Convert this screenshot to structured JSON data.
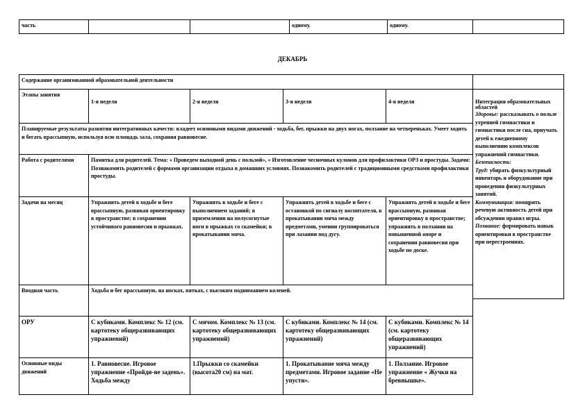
{
  "top_row": [
    "часть",
    "",
    "",
    "одному.",
    "одному.",
    ""
  ],
  "month_title": "ДЕКАБРЬ",
  "header": "Содержание организованной образовательной деятельности",
  "stages_label": "Этапы занятия",
  "weeks": [
    "1-я неделя",
    "2-я неделя",
    "3-я неделя",
    "4-я неделя"
  ],
  "planned_results": "Планируемые результаты развития интегративных качеств: владеет основными видами движений - ходьба, бег, прыжки на двух ногах, ползание на четвереньках. Умеет ходить и бегать врассыпную, используя всю площадь зала, сохраняя равновесие.",
  "parents": {
    "label": "Работа с родителями",
    "text": "Памятка для родителей. Тема: « Проведем выходной день с пользой», « Изготовление чесночных кулонов для профилактики ОРЗ и простуды. Задачи: Познакомить родителей с формами организации отдыха в домашних условиях. Познакомить родителей с традиционными средствами профилактики простуды."
  },
  "tasks": {
    "label": "Задачи на месяц",
    "items": [
      "Упражнять детей в ходьбе и беге врассыпную, развивая ориентировку в пространстве; в сохранении устойчивого равновесия и прыжках.",
      "Упражнять в ходьбе и беге с выполнением заданий; в приземлении на полусогнутые ноги в прыжках со скамейки; в прокатывании мяча.",
      "Упражнять детей в ходьбе и беге с остановкой по сигналу воспитателя, в прокатывании мяча между предметами, умении группироваться при лазании под дугу.",
      "Упражнять детей в ходьбе и беге врассыпную, развивая ориентировку в пространстве; упражнять в ползании на повышенной опоре и сохранении равновесия при ходьбе по доске."
    ]
  },
  "intro": {
    "label": "Вводная часть",
    "text": "Ходьба и бег врассыпную, на носках, пятках, с высоким подниманием коленей."
  },
  "oru": {
    "label": "ОРУ",
    "items": [
      "С кубиками. Комплекс № 12 (см. картотеку общеразвивающих упражнений)",
      "С мячом. Комплекс № 13 (см. картотеку общеразвивающих упражнений)",
      "С кубиками. Комплекс № 14 (см. картотеку общеразвивающих упражнений)",
      "С кубиками. Комплекс № 14 (см. картотеку общеразвивающих упражнений)"
    ]
  },
  "main_moves": {
    "label": "Основные виды движений",
    "items": [
      "1. Равновесие. Игровое упражнение «Пройди-не задень». Ходьба между",
      "1.Прыжки со скамейки (высота20 см) на мат.",
      "1. Прокатывание мяча между предметами. Игровое задание «Не упусти».",
      "1. Ползание. Игровое упражнение « Жучки на бревнышке»."
    ]
  },
  "integration": {
    "title": "Интеграция образовательных областей",
    "health_label": "Здоровье:",
    "health_text": "рассказывать о пользе утренней гимнастики и гимнастики после сна, приучать детей к ежедневному выполнению комплексов упражнений гимнастики.",
    "safety_label": "Безопасность:",
    "labor_label": "Труд:",
    "labor_text": "убирать физкультурный инвентарь и оборудование при проведении физкультурных занятий.",
    "comm_label": "Коммуникация:",
    "comm_text": "поощрять речевую активность детей при обсуждении правил игры.",
    "cogn_label": "Познание:",
    "cogn_text": "формировать навык ориентировки в пространстве при перестроениях."
  }
}
